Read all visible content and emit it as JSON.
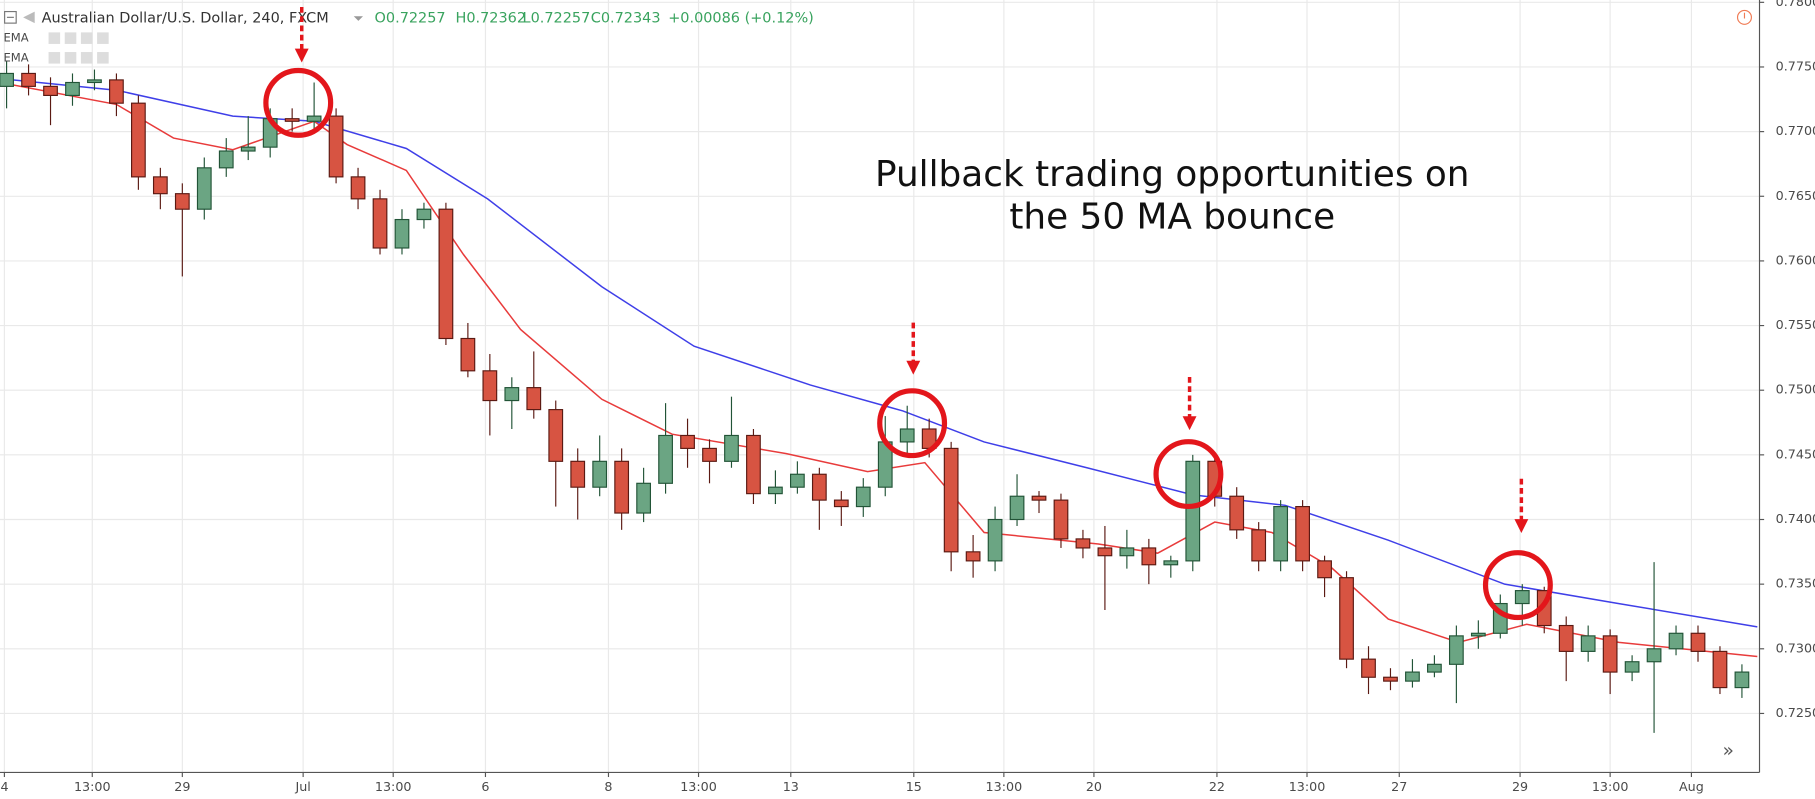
{
  "chart_data": {
    "type": "candlestick",
    "header": {
      "symbol": "Australian Dollar/U.S. Dollar, 240, FXCM",
      "open": "O0.72257",
      "high": "H0.72362",
      "low": "L0.72257",
      "close": "C0.72343",
      "change": "+0.00086 (+0.12%)"
    },
    "indicators": [
      "EMA",
      "EMA"
    ],
    "title_lines": [
      "Pullback trading opportunities on",
      "the 50 MA bounce"
    ],
    "up_color": "#6ba583",
    "down_color": "#d75442",
    "open": [
      0.7735,
      0.7745,
      0.7735,
      0.7728,
      0.7738,
      0.774,
      0.7722,
      0.7665,
      0.7652,
      0.764,
      0.7672,
      0.7685,
      0.7688,
      0.771,
      0.7708,
      0.7712,
      0.7665,
      0.7648,
      0.761,
      0.7632,
      0.764,
      0.754,
      0.7515,
      0.7492,
      0.7502,
      0.7485,
      0.7445,
      0.7425,
      0.7445,
      0.7405,
      0.7428,
      0.7465,
      0.7455,
      0.7445,
      0.7465,
      0.742,
      0.7425,
      0.7435,
      0.7415,
      0.741,
      0.7425,
      0.746,
      0.747,
      0.7455,
      0.7375,
      0.7368,
      0.74,
      0.7418,
      0.7415,
      0.7385,
      0.7378,
      0.7372,
      0.7378,
      0.7365,
      0.7368,
      0.7445,
      0.7418,
      0.7392,
      0.7368,
      0.741,
      0.7368,
      0.7355,
      0.7292,
      0.7278,
      0.7275,
      0.7282,
      0.7288,
      0.731,
      0.7312,
      0.7335,
      0.7345,
      0.7318,
      0.7298,
      0.731,
      0.7282,
      0.729,
      0.73,
      0.7312,
      0.7298,
      0.727
    ],
    "high": [
      0.7755,
      0.7752,
      0.7742,
      0.7745,
      0.7748,
      0.7745,
      0.7728,
      0.7672,
      0.766,
      0.768,
      0.7695,
      0.7712,
      0.7718,
      0.7718,
      0.7738,
      0.7718,
      0.7672,
      0.7655,
      0.764,
      0.7645,
      0.7645,
      0.7552,
      0.7528,
      0.751,
      0.753,
      0.7492,
      0.7455,
      0.7465,
      0.7455,
      0.744,
      0.749,
      0.7478,
      0.7462,
      0.7495,
      0.747,
      0.7438,
      0.7445,
      0.744,
      0.7422,
      0.7432,
      0.748,
      0.7488,
      0.7478,
      0.746,
      0.7388,
      0.741,
      0.7435,
      0.7422,
      0.742,
      0.7392,
      0.7395,
      0.7392,
      0.7385,
      0.7372,
      0.745,
      0.7448,
      0.7425,
      0.7398,
      0.7415,
      0.7415,
      0.7372,
      0.736,
      0.7302,
      0.7285,
      0.7292,
      0.7295,
      0.7318,
      0.7322,
      0.7342,
      0.735,
      0.7348,
      0.7325,
      0.7318,
      0.7315,
      0.7295,
      0.7367,
      0.7318,
      0.7318,
      0.7302,
      0.7288
    ],
    "low": [
      0.7718,
      0.7728,
      0.7705,
      0.772,
      0.7732,
      0.7712,
      0.7655,
      0.764,
      0.7588,
      0.7632,
      0.7665,
      0.7678,
      0.768,
      0.77,
      0.7702,
      0.766,
      0.764,
      0.7605,
      0.7605,
      0.7625,
      0.7535,
      0.751,
      0.7465,
      0.747,
      0.7478,
      0.741,
      0.74,
      0.7418,
      0.7392,
      0.7398,
      0.742,
      0.744,
      0.7428,
      0.744,
      0.7412,
      0.7412,
      0.742,
      0.7392,
      0.7395,
      0.7402,
      0.7418,
      0.745,
      0.7448,
      0.736,
      0.7355,
      0.736,
      0.7395,
      0.7405,
      0.7378,
      0.737,
      0.733,
      0.7362,
      0.735,
      0.7355,
      0.736,
      0.741,
      0.7385,
      0.736,
      0.736,
      0.736,
      0.734,
      0.7285,
      0.7265,
      0.7268,
      0.727,
      0.7278,
      0.7258,
      0.73,
      0.7308,
      0.7318,
      0.7312,
      0.7275,
      0.729,
      0.7265,
      0.7275,
      0.7235,
      0.7295,
      0.729,
      0.7265,
      0.7262
    ],
    "close": [
      0.7745,
      0.7735,
      0.7728,
      0.7738,
      0.774,
      0.7722,
      0.7665,
      0.7652,
      0.764,
      0.7672,
      0.7685,
      0.7688,
      0.771,
      0.7708,
      0.7712,
      0.7665,
      0.7648,
      0.761,
      0.7632,
      0.764,
      0.754,
      0.7515,
      0.7492,
      0.7502,
      0.7485,
      0.7445,
      0.7425,
      0.7445,
      0.7405,
      0.7428,
      0.7465,
      0.7455,
      0.7445,
      0.7465,
      0.742,
      0.7425,
      0.7435,
      0.7415,
      0.741,
      0.7425,
      0.746,
      0.747,
      0.7455,
      0.7375,
      0.7368,
      0.74,
      0.7418,
      0.7415,
      0.7385,
      0.7378,
      0.7372,
      0.7378,
      0.7365,
      0.7368,
      0.7445,
      0.7418,
      0.7392,
      0.7368,
      0.741,
      0.7368,
      0.7355,
      0.7292,
      0.7278,
      0.7275,
      0.7282,
      0.7288,
      0.731,
      0.7312,
      0.7335,
      0.7345,
      0.7318,
      0.7298,
      0.731,
      0.7282,
      0.729,
      0.73,
      0.7312,
      0.7298,
      0.727,
      0.7282
    ],
    "lines": [
      {
        "color": "#3f3fe8",
        "x": [
          -0.3,
          5,
          10.3,
          14,
          18.2,
          21.9,
          27.1,
          31.3,
          36.6,
          40.8,
          44.5,
          49.2,
          54,
          58.2,
          62.9,
          68.2,
          73.4,
          79.7
        ],
        "values": [
          0.7741,
          0.7732,
          0.7712,
          0.7708,
          0.7687,
          0.7648,
          0.758,
          0.7534,
          0.7504,
          0.7484,
          0.746,
          0.744,
          0.7419,
          0.7411,
          0.7384,
          0.735,
          0.7335,
          0.7317
        ]
      },
      {
        "color": "#e83b3b",
        "x": [
          -0.3,
          5,
          7.6,
          10.3,
          14,
          15.5,
          18.2,
          20.8,
          23.4,
          27.1,
          30.3,
          35.5,
          39.2,
          41.8,
          44.5,
          49.7,
          52.4,
          55,
          57.6,
          60.3,
          62.9,
          66.1,
          69.2,
          73.4,
          79.7
        ],
        "values": [
          0.7738,
          0.7721,
          0.7695,
          0.7686,
          0.7708,
          0.769,
          0.767,
          0.7605,
          0.7547,
          0.7493,
          0.7466,
          0.7451,
          0.7437,
          0.7444,
          0.739,
          0.7381,
          0.7374,
          0.7398,
          0.739,
          0.7363,
          0.7323,
          0.7305,
          0.7319,
          0.7305,
          0.7294
        ]
      }
    ],
    "xlim": [
      -0.3,
      79.8
    ],
    "xticks": [
      {
        "value": -0.1,
        "label": "4"
      },
      {
        "value": 3.9,
        "label": "13:00"
      },
      {
        "value": 8,
        "label": "29"
      },
      {
        "value": 13.5,
        "label": "Jul"
      },
      {
        "value": 17.6,
        "label": "13:00"
      },
      {
        "value": 21.8,
        "label": "6"
      },
      {
        "value": 27.4,
        "label": "8"
      },
      {
        "value": 31.5,
        "label": "13:00"
      },
      {
        "value": 35.7,
        "label": "13"
      },
      {
        "value": 41.3,
        "label": "15"
      },
      {
        "value": 45.4,
        "label": "13:00"
      },
      {
        "value": 49.5,
        "label": "20"
      },
      {
        "value": 55.1,
        "label": "22"
      },
      {
        "value": 59.2,
        "label": "13:00"
      },
      {
        "value": 63.4,
        "label": "27"
      },
      {
        "value": 68.9,
        "label": "29"
      },
      {
        "value": 73,
        "label": "13:00"
      },
      {
        "value": 76.7,
        "label": "Aug"
      }
    ],
    "ylim": [
      0.72044,
      0.78018
    ],
    "yticks": [
      {
        "value": 0.78,
        "label": "0.78000"
      },
      {
        "value": 0.775,
        "label": "0.77500"
      },
      {
        "value": 0.77,
        "label": "0.77000"
      },
      {
        "value": 0.765,
        "label": "0.76500"
      },
      {
        "value": 0.76,
        "label": "0.76000"
      },
      {
        "value": 0.755,
        "label": "0.75500"
      },
      {
        "value": 0.75,
        "label": "0.75000"
      },
      {
        "value": 0.745,
        "label": "0.74500"
      },
      {
        "value": 0.74,
        "label": "0.74000"
      },
      {
        "value": 0.735,
        "label": "0.73500"
      },
      {
        "value": 0.73,
        "label": "0.73000"
      },
      {
        "value": 0.725,
        "label": "0.72500"
      }
    ],
    "grid": true
  }
}
